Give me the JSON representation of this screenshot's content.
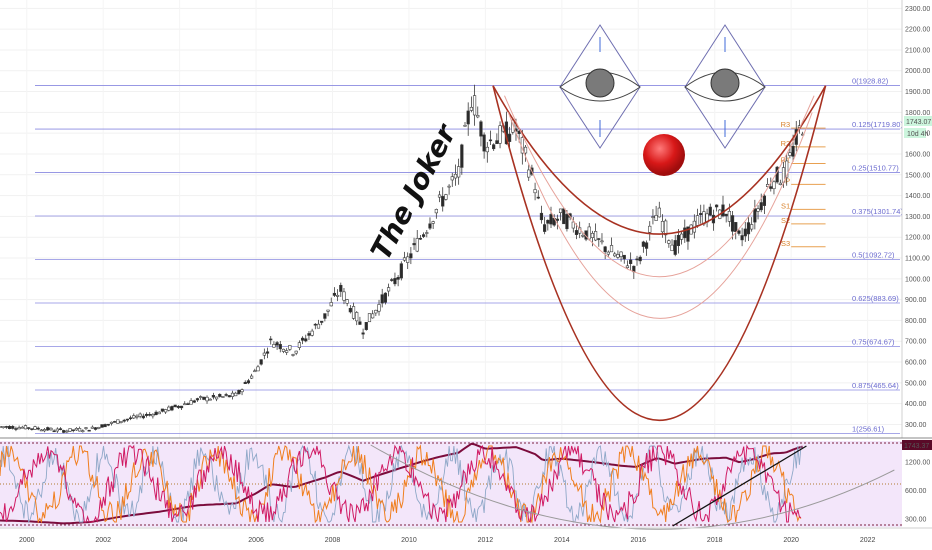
{
  "chart_data": [
    {
      "type": "candlestick",
      "annotation": "The Joker",
      "y_ticks": [
        300,
        400,
        500,
        600,
        700,
        800,
        900,
        1000,
        1100,
        1200,
        1300,
        1400,
        1500,
        1600,
        1700,
        1800,
        1900,
        2000,
        2100,
        2200,
        2300
      ],
      "ylim": [
        235,
        2340
      ],
      "x_ticks": [
        "2000",
        "2002",
        "2004",
        "2006",
        "2008",
        "2010",
        "2012",
        "2014",
        "2016",
        "2018",
        "2020",
        "2022"
      ],
      "xlim": [
        1999.3,
        2022.9
      ],
      "grid": true,
      "price_path": [
        [
          1999.3,
          290
        ],
        [
          2000.0,
          285
        ],
        [
          2001.0,
          270
        ],
        [
          2001.7,
          280
        ],
        [
          2002.5,
          320
        ],
        [
          2003.5,
          360
        ],
        [
          2004.5,
          420
        ],
        [
          2005.5,
          440
        ],
        [
          2006.0,
          560
        ],
        [
          2006.4,
          700
        ],
        [
          2007.0,
          650
        ],
        [
          2007.8,
          820
        ],
        [
          2008.2,
          950
        ],
        [
          2008.8,
          760
        ],
        [
          2009.5,
          950
        ],
        [
          2010.0,
          1100
        ],
        [
          2010.8,
          1360
        ],
        [
          2011.3,
          1500
        ],
        [
          2011.65,
          1880
        ],
        [
          2012.0,
          1650
        ],
        [
          2012.8,
          1720
        ],
        [
          2013.3,
          1450
        ],
        [
          2013.5,
          1250
        ],
        [
          2014.0,
          1300
        ],
        [
          2014.8,
          1200
        ],
        [
          2015.5,
          1100
        ],
        [
          2015.95,
          1060
        ],
        [
          2016.5,
          1320
        ],
        [
          2016.95,
          1150
        ],
        [
          2017.7,
          1300
        ],
        [
          2018.3,
          1330
        ],
        [
          2018.65,
          1190
        ],
        [
          2019.0,
          1280
        ],
        [
          2019.5,
          1480
        ],
        [
          2019.85,
          1500
        ],
        [
          2020.1,
          1650
        ],
        [
          2020.3,
          1743
        ]
      ],
      "last_price": "1743.07",
      "countdown": "10d 4h",
      "fib_levels": [
        {
          "label": "0(1928.82)",
          "value": 1928.82
        },
        {
          "label": "0.125(1719.80)",
          "value": 1719.8
        },
        {
          "label": "0.25(1510.77)",
          "value": 1510.77
        },
        {
          "label": "0.375(1301.74)",
          "value": 1301.74
        },
        {
          "label": "0.5(1092.72)",
          "value": 1092.72
        },
        {
          "label": "0.625(883.69)",
          "value": 883.69
        },
        {
          "label": "0.75(674.67)",
          "value": 674.67
        },
        {
          "label": "0.875(465.64)",
          "value": 465.64
        },
        {
          "label": "1(256.61)",
          "value": 256.61
        }
      ],
      "pivots": [
        {
          "label": "R3",
          "value": 1724
        },
        {
          "label": "R2",
          "value": 1634
        },
        {
          "label": "R1",
          "value": 1554
        },
        {
          "label": "P",
          "value": 1454
        },
        {
          "label": "S1",
          "value": 1334
        },
        {
          "label": "S2",
          "value": 1264
        },
        {
          "label": "S3",
          "value": 1154
        }
      ],
      "smile_curves": [
        {
          "x0": 2012.2,
          "x1": 2020.9,
          "top": 1928,
          "bottom": 1215
        },
        {
          "x0": 2012.5,
          "x1": 2020.6,
          "top": 1880,
          "bottom": 1010
        },
        {
          "x0": 2012.6,
          "x1": 2020.55,
          "top": 1800,
          "bottom": 810
        },
        {
          "x0": 2012.2,
          "x1": 2020.9,
          "top": 1928,
          "bottom": 320
        }
      ],
      "colors": {
        "candle": "#3a3a3a",
        "fib": "#8a8ae0",
        "pivot": "#e8a050",
        "smile": "#a83222",
        "nose": "#d81818"
      }
    },
    {
      "type": "line",
      "series": [
        {
          "color": "#7b0c3c"
        },
        {
          "color": "#f07e1e"
        },
        {
          "color": "#d01a63"
        },
        {
          "color": "#8fa8c8"
        }
      ],
      "y_ticks": [
        300,
        600,
        1200
      ],
      "last_value": "1743.37"
    }
  ]
}
